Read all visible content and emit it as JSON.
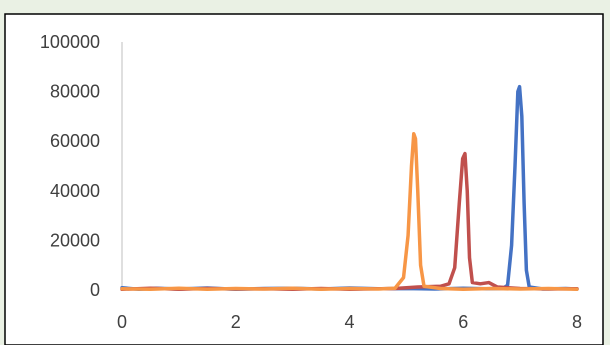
{
  "chart_data": {
    "type": "line",
    "title": "",
    "xlabel": "",
    "ylabel": "",
    "xlim": [
      0,
      8
    ],
    "ylim": [
      0,
      100000
    ],
    "x_ticks": [
      0,
      2,
      4,
      6,
      8
    ],
    "y_ticks": [
      0,
      20000,
      40000,
      60000,
      80000,
      100000
    ],
    "y_tick_labels": [
      "0",
      "20000",
      "40000",
      "60000",
      "80000",
      "100000"
    ],
    "grid": false,
    "legend": "none",
    "series": [
      {
        "color": "#4472c4",
        "points": [
          [
            0,
            900
          ],
          [
            0.3,
            300
          ],
          [
            0.6,
            700
          ],
          [
            1,
            400
          ],
          [
            1.5,
            800
          ],
          [
            2,
            300
          ],
          [
            2.5,
            600
          ],
          [
            3,
            700
          ],
          [
            3.5,
            400
          ],
          [
            4,
            800
          ],
          [
            4.5,
            500
          ],
          [
            5,
            600
          ],
          [
            5.5,
            400
          ],
          [
            6,
            700
          ],
          [
            6.4,
            500
          ],
          [
            6.7,
            600
          ],
          [
            6.78,
            2000
          ],
          [
            6.85,
            18000
          ],
          [
            6.91,
            50000
          ],
          [
            6.96,
            80000
          ],
          [
            6.99,
            82000
          ],
          [
            7.03,
            70000
          ],
          [
            7.07,
            35000
          ],
          [
            7.11,
            8000
          ],
          [
            7.16,
            1200
          ],
          [
            7.4,
            400
          ],
          [
            7.8,
            600
          ],
          [
            8,
            400
          ]
        ]
      },
      {
        "color": "#c0504d",
        "points": [
          [
            0,
            300
          ],
          [
            0.5,
            700
          ],
          [
            1,
            300
          ],
          [
            1.5,
            600
          ],
          [
            2,
            400
          ],
          [
            2.5,
            500
          ],
          [
            3,
            300
          ],
          [
            3.5,
            600
          ],
          [
            4,
            300
          ],
          [
            4.5,
            500
          ],
          [
            4.8,
            600
          ],
          [
            5.2,
            1200
          ],
          [
            5.6,
            1500
          ],
          [
            5.75,
            2500
          ],
          [
            5.85,
            9000
          ],
          [
            5.93,
            35000
          ],
          [
            5.99,
            53000
          ],
          [
            6.03,
            55000
          ],
          [
            6.07,
            40000
          ],
          [
            6.11,
            13000
          ],
          [
            6.16,
            3000
          ],
          [
            6.3,
            2500
          ],
          [
            6.45,
            3000
          ],
          [
            6.6,
            1200
          ],
          [
            7,
            600
          ],
          [
            7.5,
            400
          ],
          [
            8,
            500
          ]
        ]
      },
      {
        "color": "#f79646",
        "points": [
          [
            0,
            500
          ],
          [
            0.5,
            300
          ],
          [
            1,
            700
          ],
          [
            1.5,
            300
          ],
          [
            2,
            600
          ],
          [
            2.5,
            400
          ],
          [
            3,
            700
          ],
          [
            3.5,
            300
          ],
          [
            4,
            600
          ],
          [
            4.5,
            400
          ],
          [
            4.8,
            700
          ],
          [
            4.95,
            5000
          ],
          [
            5.03,
            22000
          ],
          [
            5.09,
            50000
          ],
          [
            5.13,
            63000
          ],
          [
            5.16,
            61000
          ],
          [
            5.2,
            40000
          ],
          [
            5.25,
            10000
          ],
          [
            5.31,
            1500
          ],
          [
            5.6,
            600
          ],
          [
            6,
            300
          ],
          [
            6.5,
            600
          ],
          [
            7,
            400
          ],
          [
            7.5,
            600
          ],
          [
            8,
            300
          ]
        ]
      }
    ]
  }
}
